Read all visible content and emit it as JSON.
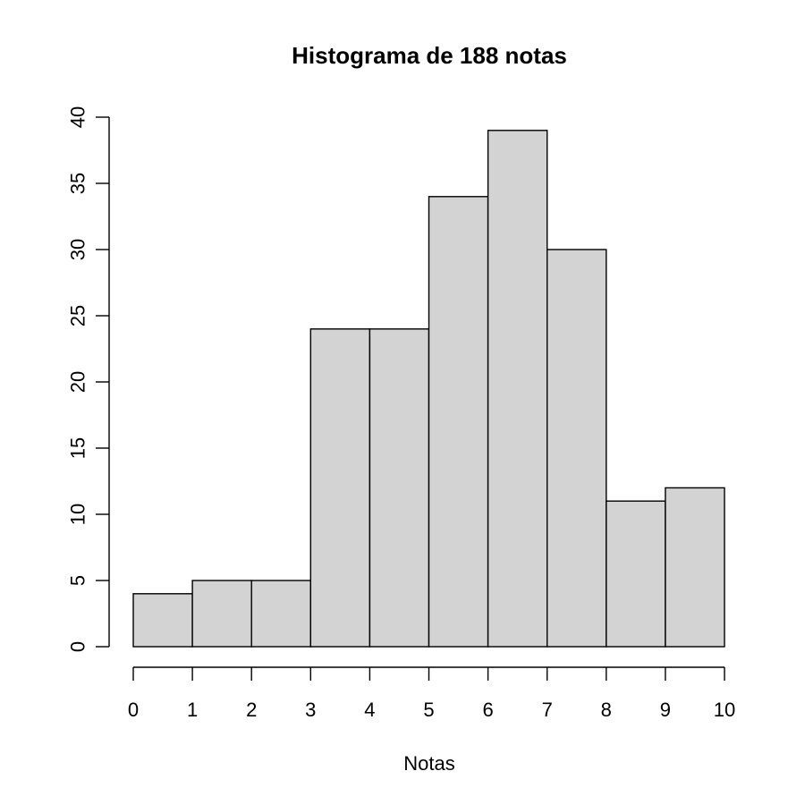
{
  "chart_data": {
    "type": "bar",
    "title": "Histograma de 188 notas",
    "xlabel": "Notas",
    "ylabel": "",
    "bins": [
      {
        "start": 0,
        "end": 1,
        "count": 4
      },
      {
        "start": 1,
        "end": 2,
        "count": 5
      },
      {
        "start": 2,
        "end": 3,
        "count": 5
      },
      {
        "start": 3,
        "end": 4,
        "count": 24
      },
      {
        "start": 4,
        "end": 5,
        "count": 24
      },
      {
        "start": 5,
        "end": 6,
        "count": 34
      },
      {
        "start": 6,
        "end": 7,
        "count": 39
      },
      {
        "start": 7,
        "end": 8,
        "count": 30
      },
      {
        "start": 8,
        "end": 9,
        "count": 11
      },
      {
        "start": 9,
        "end": 10,
        "count": 12
      }
    ],
    "xlim": [
      0,
      10
    ],
    "ylim": [
      0,
      40
    ],
    "x_ticks": [
      "0",
      "1",
      "2",
      "3",
      "4",
      "5",
      "6",
      "7",
      "8",
      "9",
      "10"
    ],
    "y_ticks": [
      "0",
      "5",
      "10",
      "15",
      "20",
      "25",
      "30",
      "35",
      "40"
    ],
    "bar_color": "#d3d3d3",
    "grid": false,
    "legend": "none"
  }
}
